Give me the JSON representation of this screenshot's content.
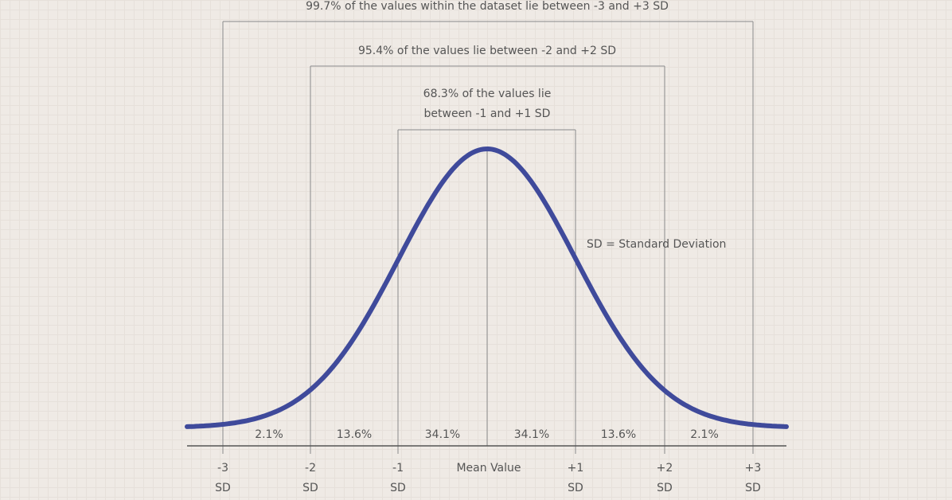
{
  "annotations": {
    "range_3sd": "99.7% of the values within the dataset lie between -3 and +3 SD",
    "range_2sd": "95.4% of the values lie between -2 and +2 SD",
    "range_1sd": [
      "68.3% of the values lie",
      "between -1 and +1 SD"
    ]
  },
  "note": "SD = Standard Deviation",
  "segments": [
    "2.1%",
    "13.6%",
    "34.1%",
    "34.1%",
    "13.6%",
    "2.1%"
  ],
  "x_axis": {
    "ticks": [
      {
        "value": "-3",
        "unit": "SD"
      },
      {
        "value": "-2",
        "unit": "SD"
      },
      {
        "value": "-1",
        "unit": "SD"
      },
      {
        "value": "+1",
        "unit": "SD"
      },
      {
        "value": "+2",
        "unit": "SD"
      },
      {
        "value": "+3",
        "unit": "SD"
      }
    ],
    "mean_label": "Mean Value"
  }
}
